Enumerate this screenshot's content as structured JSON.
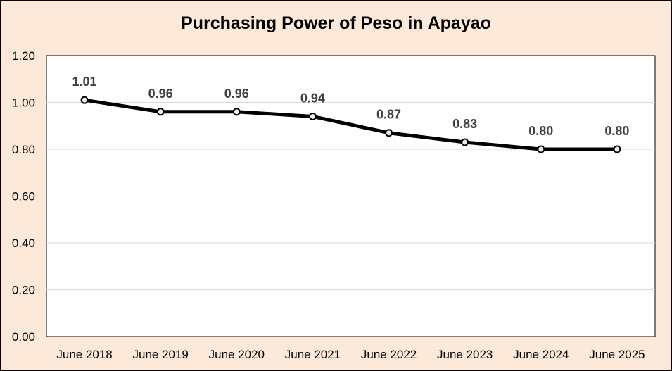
{
  "chart_data": {
    "type": "line",
    "title": "Purchasing Power of Peso in Apayao",
    "categories": [
      "June 2018",
      "June 2019",
      "June 2020",
      "June 2021",
      "June 2022",
      "June 2023",
      "June 2024",
      "June 2025"
    ],
    "series": [
      {
        "values": [
          1.01,
          0.96,
          0.96,
          0.94,
          0.87,
          0.83,
          0.8,
          0.8
        ],
        "data_labels": [
          "1.01",
          "0.96",
          "0.96",
          "0.94",
          "0.87",
          "0.83",
          "0.80",
          "0.80"
        ],
        "color": "#000000",
        "marker_fill": "#ebf1de"
      }
    ],
    "ylim": [
      0,
      1.2
    ],
    "yticks": [
      "0.00",
      "0.20",
      "0.40",
      "0.60",
      "0.80",
      "1.00",
      "1.20"
    ],
    "xlabel": "",
    "ylabel": "",
    "grid": true,
    "legend": "none",
    "colors": {
      "background": "#fde9d9",
      "plot_area": "#ffffff",
      "gridline": "#d9d9d9"
    }
  }
}
